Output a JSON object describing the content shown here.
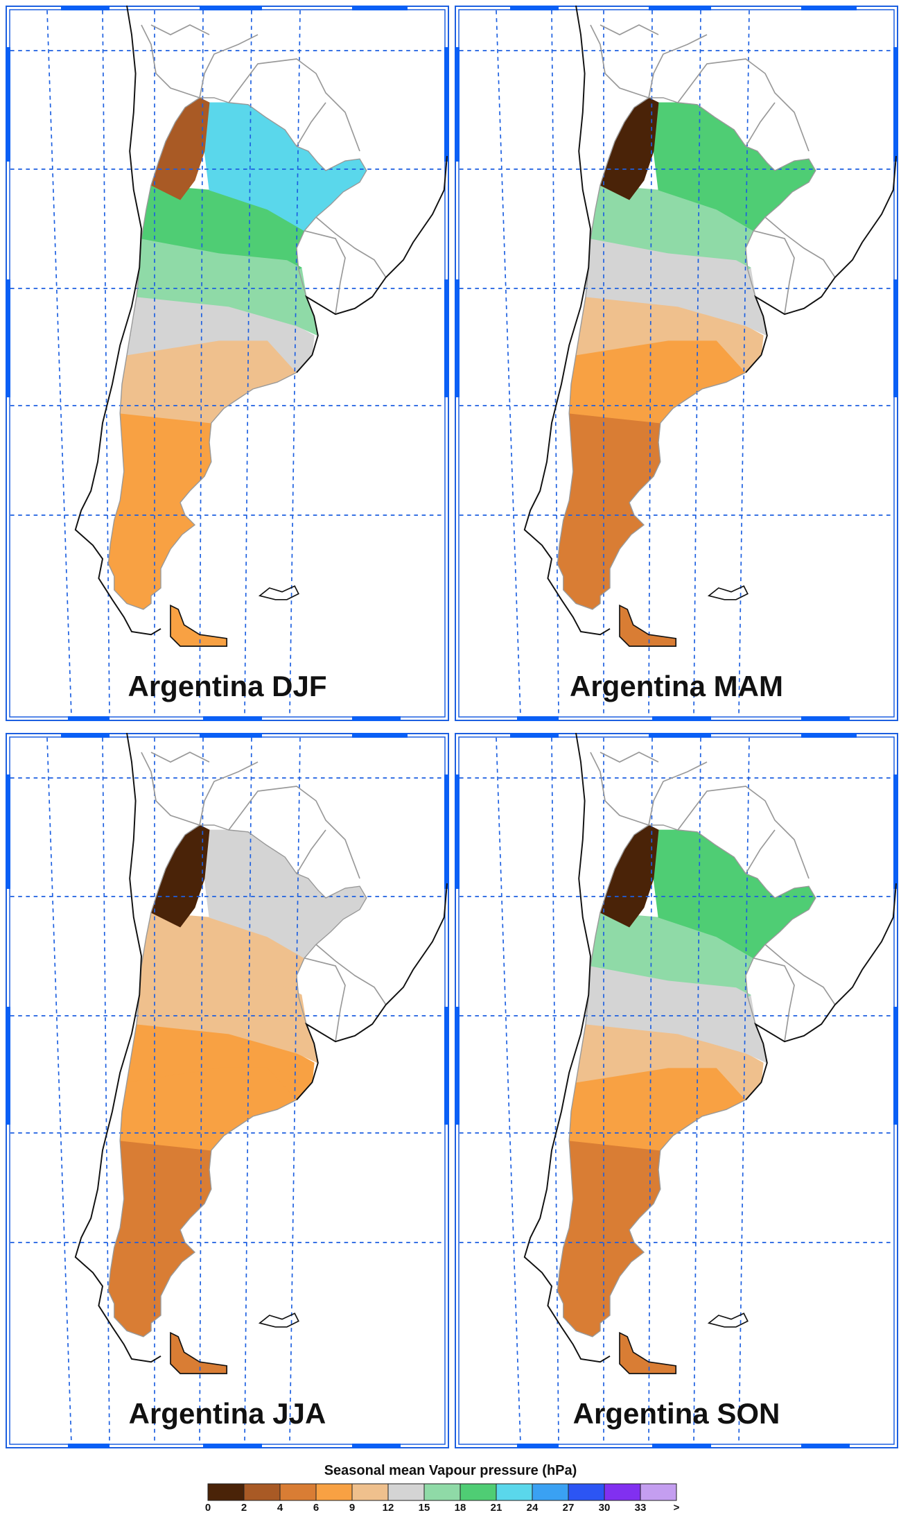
{
  "panels": [
    {
      "id": "djf",
      "title": "Argentina DJF",
      "season": "DJF",
      "region_levels": {
        "nw_andes": "2-4",
        "northeast": "21-24",
        "north_central": "18-21",
        "center": "15-18",
        "pampas_south": "12-15",
        "south": "9-12",
        "patagonia": "6-9",
        "tierra": "6-9"
      }
    },
    {
      "id": "mam",
      "title": "Argentina MAM",
      "season": "MAM",
      "region_levels": {
        "nw_andes": "0-2",
        "northeast": "18-21",
        "north_central": "15-18",
        "center": "12-15",
        "pampas_south": "9-12",
        "south": "6-9",
        "patagonia": "4-6",
        "tierra": "4-6"
      }
    },
    {
      "id": "jja",
      "title": "Argentina JJA",
      "season": "JJA",
      "region_levels": {
        "nw_andes": "0-2",
        "northeast": "12-15",
        "north_central": "9-12",
        "center": "9-12",
        "pampas_south": "6-9",
        "south": "6-9",
        "patagonia": "4-6",
        "tierra": "4-6"
      }
    },
    {
      "id": "son",
      "title": "Argentina SON",
      "season": "SON",
      "region_levels": {
        "nw_andes": "0-2",
        "northeast": "18-21",
        "north_central": "15-18",
        "center": "12-15",
        "pampas_south": "9-12",
        "south": "6-9",
        "patagonia": "4-6",
        "tierra": "4-6"
      }
    }
  ],
  "legend": {
    "title": "Seasonal mean Vapour pressure (hPa)",
    "tick_labels": [
      "0",
      "2",
      "4",
      "6",
      "9",
      "12",
      "15",
      "18",
      "21",
      "24",
      "27",
      "30",
      "33",
      ">"
    ],
    "colors": [
      "#4a2308",
      "#a95a25",
      "#d97d34",
      "#f8a143",
      "#efc08d",
      "#d4d4d4",
      "#8fdaa7",
      "#4fcd74",
      "#5ad7eb",
      "#3aa1f3",
      "#2c55f4",
      "#8130f0",
      "#c49ef0"
    ]
  },
  "colors": {
    "grid": "#1c5fe0",
    "frame_stripe": "#0a5ff5",
    "border": "#999999",
    "coast": "#111111"
  }
}
